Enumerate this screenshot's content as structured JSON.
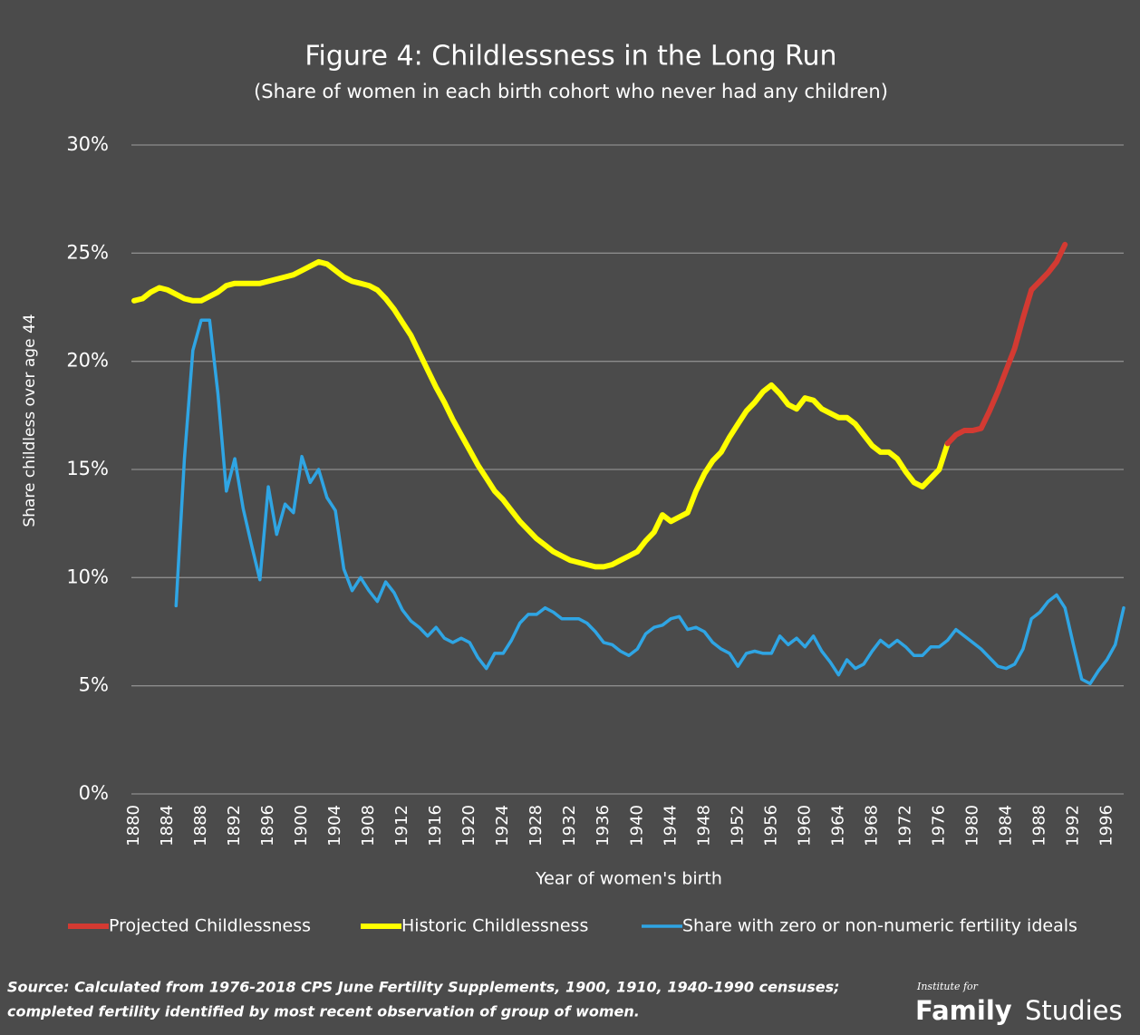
{
  "chart_data": {
    "type": "line",
    "title": "Figure 4: Childlessness in the Long Run",
    "subtitle": "(Share of women in each birth cohort who never had any children)",
    "ylabel": "Share childless over age 44",
    "xlabel": "Year of women's birth",
    "xlim": [
      1880,
      1998
    ],
    "ylim": [
      0,
      30
    ],
    "yticks": [
      {
        "value": 0,
        "label": "0%"
      },
      {
        "value": 5,
        "label": "5%"
      },
      {
        "value": 10,
        "label": "10%"
      },
      {
        "value": 15,
        "label": "15%"
      },
      {
        "value": 20,
        "label": "20%"
      },
      {
        "value": 25,
        "label": "25%"
      },
      {
        "value": 30,
        "label": "30%"
      }
    ],
    "xticks": [
      1880,
      1884,
      1888,
      1892,
      1896,
      1900,
      1904,
      1908,
      1912,
      1916,
      1920,
      1924,
      1928,
      1932,
      1936,
      1940,
      1944,
      1948,
      1952,
      1956,
      1960,
      1964,
      1968,
      1972,
      1976,
      1980,
      1984,
      1988,
      1992,
      1996
    ],
    "grid": true,
    "legend": "bottom",
    "x": [
      1880,
      1881,
      1882,
      1883,
      1884,
      1885,
      1886,
      1887,
      1888,
      1889,
      1890,
      1891,
      1892,
      1893,
      1894,
      1895,
      1896,
      1897,
      1898,
      1899,
      1900,
      1901,
      1902,
      1903,
      1904,
      1905,
      1906,
      1907,
      1908,
      1909,
      1910,
      1911,
      1912,
      1913,
      1914,
      1915,
      1916,
      1917,
      1918,
      1919,
      1920,
      1921,
      1922,
      1923,
      1924,
      1925,
      1926,
      1927,
      1928,
      1929,
      1930,
      1931,
      1932,
      1933,
      1934,
      1935,
      1936,
      1937,
      1938,
      1939,
      1940,
      1941,
      1942,
      1943,
      1944,
      1945,
      1946,
      1947,
      1948,
      1949,
      1950,
      1951,
      1952,
      1953,
      1954,
      1955,
      1956,
      1957,
      1958,
      1959,
      1960,
      1961,
      1962,
      1963,
      1964,
      1965,
      1966,
      1967,
      1968,
      1969,
      1970,
      1971,
      1972,
      1973,
      1974,
      1975,
      1976,
      1977,
      1978,
      1979,
      1980,
      1981,
      1982,
      1983,
      1984,
      1985,
      1986,
      1987,
      1988,
      1989,
      1990,
      1991,
      1992,
      1993,
      1994,
      1995,
      1996,
      1997,
      1998
    ],
    "series": [
      {
        "name": "Projected Childlessness",
        "color": "#d33a32",
        "width": 6,
        "values": [
          null,
          null,
          null,
          null,
          null,
          null,
          null,
          null,
          null,
          null,
          null,
          null,
          null,
          null,
          null,
          null,
          null,
          null,
          null,
          null,
          null,
          null,
          null,
          null,
          null,
          null,
          null,
          null,
          null,
          null,
          null,
          null,
          null,
          null,
          null,
          null,
          null,
          null,
          null,
          null,
          null,
          null,
          null,
          null,
          null,
          null,
          null,
          null,
          null,
          null,
          null,
          null,
          null,
          null,
          null,
          null,
          null,
          null,
          null,
          null,
          null,
          null,
          null,
          null,
          null,
          null,
          null,
          null,
          null,
          null,
          null,
          null,
          null,
          null,
          null,
          null,
          null,
          null,
          null,
          null,
          null,
          null,
          null,
          null,
          null,
          null,
          null,
          null,
          null,
          null,
          null,
          null,
          null,
          null,
          null,
          null,
          null,
          16.2,
          16.6,
          16.8,
          16.8,
          16.9,
          17.7,
          18.6,
          19.6,
          20.6,
          22.0,
          23.3,
          23.7,
          24.1,
          24.6,
          25.4,
          null,
          null,
          null,
          null,
          null,
          null,
          null
        ]
      },
      {
        "name": "Historic Childlessness",
        "color": "#ffff00",
        "width": 6,
        "values": [
          22.8,
          22.9,
          23.2,
          23.4,
          23.3,
          23.1,
          22.9,
          22.8,
          22.8,
          23.0,
          23.2,
          23.5,
          23.6,
          23.6,
          23.6,
          23.6,
          23.7,
          23.8,
          23.9,
          24.0,
          24.2,
          24.4,
          24.6,
          24.5,
          24.2,
          23.9,
          23.7,
          23.6,
          23.5,
          23.3,
          22.9,
          22.4,
          21.8,
          21.2,
          20.4,
          19.6,
          18.8,
          18.1,
          17.3,
          16.6,
          15.9,
          15.2,
          14.6,
          14.0,
          13.6,
          13.1,
          12.6,
          12.2,
          11.8,
          11.5,
          11.2,
          11.0,
          10.8,
          10.7,
          10.6,
          10.5,
          10.5,
          10.6,
          10.8,
          11.0,
          11.2,
          11.7,
          12.1,
          12.9,
          12.6,
          12.8,
          13.0,
          14.0,
          14.8,
          15.4,
          15.8,
          16.5,
          17.1,
          17.7,
          18.1,
          18.6,
          18.9,
          18.5,
          18.0,
          17.8,
          18.3,
          18.2,
          17.8,
          17.6,
          17.4,
          17.4,
          17.1,
          16.6,
          16.1,
          15.8,
          15.8,
          15.5,
          14.9,
          14.4,
          14.2,
          14.6,
          15.0,
          16.2,
          null,
          null,
          null,
          null,
          null,
          null,
          null,
          null,
          null,
          null,
          null,
          null,
          null,
          null,
          null,
          null,
          null,
          null,
          null,
          null,
          null
        ]
      },
      {
        "name": "Share with zero or non-numeric fertility ideals",
        "color": "#2fa5e4",
        "width": 3.5,
        "values": [
          null,
          null,
          null,
          null,
          null,
          8.7,
          15.5,
          20.5,
          21.9,
          21.9,
          18.5,
          14.0,
          15.5,
          13.2,
          11.5,
          9.9,
          14.2,
          12.0,
          13.4,
          13.0,
          15.6,
          14.4,
          15.0,
          13.7,
          13.1,
          10.4,
          9.4,
          10.0,
          9.4,
          8.9,
          9.8,
          9.3,
          8.5,
          8.0,
          7.7,
          7.3,
          7.7,
          7.2,
          7.0,
          7.2,
          7.0,
          6.3,
          5.8,
          6.5,
          6.5,
          7.1,
          7.9,
          8.3,
          8.3,
          8.6,
          8.4,
          8.1,
          8.1,
          8.1,
          7.9,
          7.5,
          7.0,
          6.9,
          6.6,
          6.4,
          6.7,
          7.4,
          7.7,
          7.8,
          8.1,
          8.2,
          7.6,
          7.7,
          7.5,
          7.0,
          6.7,
          6.5,
          5.9,
          6.5,
          6.6,
          6.5,
          6.5,
          7.3,
          6.9,
          7.2,
          6.8,
          7.3,
          6.6,
          6.1,
          5.5,
          6.2,
          5.8,
          6.0,
          6.6,
          7.1,
          6.8,
          7.1,
          6.8,
          6.4,
          6.4,
          6.8,
          6.8,
          7.1,
          7.6,
          7.3,
          7.0,
          6.7,
          6.3,
          5.9,
          5.8,
          6.0,
          6.7,
          8.1,
          8.4,
          8.9,
          9.2,
          8.6,
          6.9,
          5.3,
          5.1,
          5.7,
          6.2,
          6.9,
          8.6
        ]
      }
    ]
  },
  "source": [
    "Source: Calculated from 1976-2018 CPS June Fertility Supplements, 1900, 1910, 1940-1990 censuses;",
    "completed fertility identified by most recent observation of group of women."
  ],
  "logo": {
    "top": "Institute for",
    "main": "Family",
    "sub": "Studies"
  }
}
